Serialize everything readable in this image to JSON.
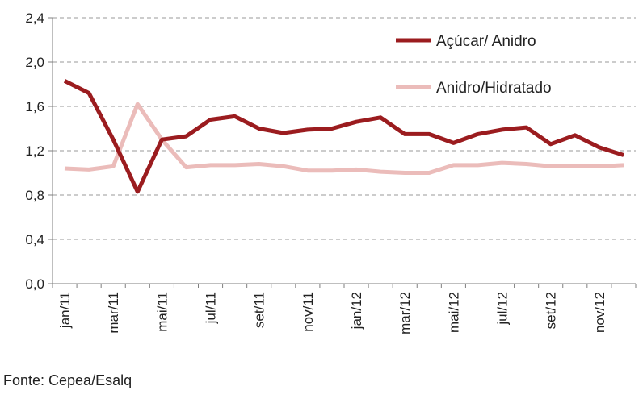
{
  "chart_data": {
    "type": "line",
    "title": "",
    "xlabel": "",
    "ylabel": "",
    "ylim": [
      0,
      2.4
    ],
    "y_ticks": [
      "0,0",
      "0,4",
      "0,8",
      "1,2",
      "1,6",
      "2,0",
      "2,4"
    ],
    "y_tick_values": [
      0,
      0.4,
      0.8,
      1.2,
      1.6,
      2.0,
      2.4
    ],
    "x": [
      "jan/11",
      "fev/11",
      "mar/11",
      "abr/11",
      "mai/11",
      "jun/11",
      "jul/11",
      "ago/11",
      "set/11",
      "out/11",
      "nov/11",
      "dez/11",
      "jan/12",
      "fev/12",
      "mar/12",
      "abr/12",
      "mai/12",
      "jun/12",
      "jul/12",
      "ago/12",
      "set/12",
      "out/12",
      "nov/12",
      "dez/12"
    ],
    "x_tick_labels": [
      "jan/11",
      "mar/11",
      "mai/11",
      "jul/11",
      "set/11",
      "nov/11",
      "jan/12",
      "mar/12",
      "mai/12",
      "jul/12",
      "set/12",
      "nov/12"
    ],
    "grid": "horizontal-dashed",
    "legend_position": "top-right",
    "series": [
      {
        "name": "Açúcar/ Anidro",
        "color": "#9b1c1f",
        "values": [
          1.83,
          1.72,
          1.3,
          0.83,
          1.3,
          1.33,
          1.48,
          1.51,
          1.4,
          1.36,
          1.39,
          1.4,
          1.46,
          1.5,
          1.35,
          1.35,
          1.27,
          1.35,
          1.39,
          1.41,
          1.26,
          1.34,
          1.23,
          1.16
        ]
      },
      {
        "name": "Anidro/Hidratado",
        "color": "#ebbcba",
        "values": [
          1.04,
          1.03,
          1.06,
          1.62,
          1.3,
          1.05,
          1.07,
          1.07,
          1.08,
          1.06,
          1.02,
          1.02,
          1.03,
          1.01,
          1.0,
          1.0,
          1.07,
          1.07,
          1.09,
          1.08,
          1.06,
          1.06,
          1.06,
          1.07
        ]
      }
    ]
  },
  "source": "Fonte: Cepea/Esalq"
}
